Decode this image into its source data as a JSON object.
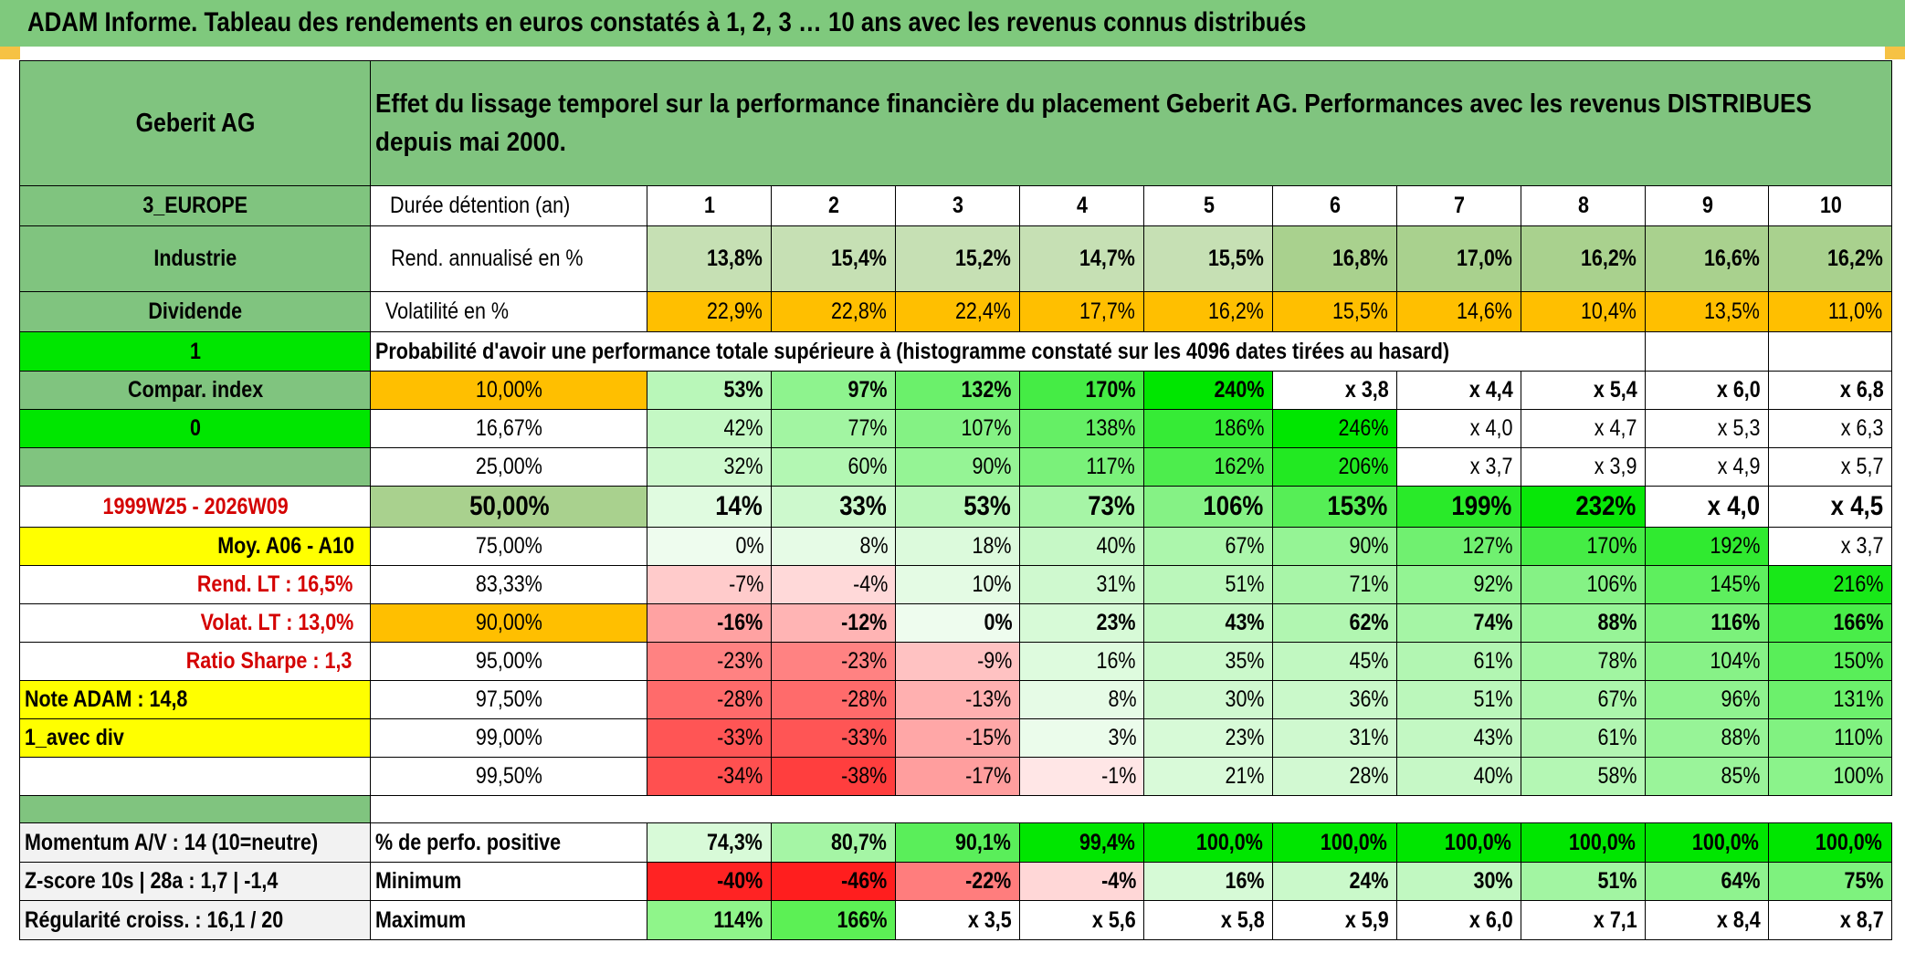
{
  "banner_title": "ADAM Informe. Tableau des rendements en euros constatés à 1, 2, 3 … 10 ans avec les revenus connus distribués",
  "colors": {
    "header_green": "#80c47f",
    "bright_green": "#00e600",
    "orange": "#ffbf00",
    "yellow": "#ffff00",
    "red_text": "#d40000"
  },
  "asset_name": "Geberit AG",
  "header_text": "Effet du lissage temporel sur la performance financière du placement Geberit AG. Performances avec les revenus DISTRIBUES depuis mai 2000.",
  "left_labels": {
    "region": "3_EUROPE",
    "sector": "Industrie",
    "dividend": "Dividende",
    "flag1": "1",
    "compar_index": "Compar. index",
    "flag0": "0",
    "blank": "",
    "period": "1999W25 - 2026W09",
    "moy": "Moy. A06 - A10",
    "rend_lt": "Rend. LT :    16,5%",
    "volat_lt": "Volat. LT :    13,0%",
    "sharpe": "Ratio Sharpe :    1,3",
    "note": "Note ADAM : 14,8",
    "div_mode": "1_avec div",
    "momentum": "Momentum A/V : 14 (10=neutre)",
    "zscore": "Z-score 10s | 28a : 1,7 | -1,4",
    "regularite": "Régularité croiss. : 16,1 / 20"
  },
  "years_label": "Durée détention (an)",
  "years": [
    "1",
    "2",
    "3",
    "4",
    "5",
    "6",
    "7",
    "8",
    "9",
    "10"
  ],
  "rend_label": "Rend. annualisé en %",
  "rend": [
    "13,8%",
    "15,4%",
    "15,2%",
    "14,7%",
    "15,5%",
    "16,8%",
    "17,0%",
    "16,2%",
    "16,6%",
    "16,2%"
  ],
  "vol_label": "Volatilité en %",
  "vol": [
    "22,9%",
    "22,8%",
    "22,4%",
    "17,7%",
    "16,2%",
    "15,5%",
    "14,6%",
    "10,4%",
    "13,5%",
    "11,0%"
  ],
  "prob_header": "Probabilité d'avoir une performance totale supérieure à (histogramme constaté sur les 4096 dates tirées au hasard)",
  "prob_rows": [
    {
      "p": "10,00%",
      "v": [
        "53%",
        "97%",
        "132%",
        "170%",
        "240%",
        "x 3,8",
        "x 4,4",
        "x 5,4",
        "x 6,0",
        "x 6,8"
      ]
    },
    {
      "p": "16,67%",
      "v": [
        "42%",
        "77%",
        "107%",
        "138%",
        "186%",
        "246%",
        "x 4,0",
        "x 4,7",
        "x 5,3",
        "x 6,3"
      ]
    },
    {
      "p": "25,00%",
      "v": [
        "32%",
        "60%",
        "90%",
        "117%",
        "162%",
        "206%",
        "x 3,7",
        "x 3,9",
        "x 4,9",
        "x 5,7"
      ]
    },
    {
      "p": "50,00%",
      "v": [
        "14%",
        "33%",
        "53%",
        "73%",
        "106%",
        "153%",
        "199%",
        "232%",
        "x 4,0",
        "x 4,5"
      ]
    },
    {
      "p": "75,00%",
      "v": [
        "0%",
        "8%",
        "18%",
        "40%",
        "67%",
        "90%",
        "127%",
        "170%",
        "192%",
        "x 3,7"
      ]
    },
    {
      "p": "83,33%",
      "v": [
        "-7%",
        "-4%",
        "10%",
        "31%",
        "51%",
        "71%",
        "92%",
        "106%",
        "145%",
        "216%"
      ]
    },
    {
      "p": "90,00%",
      "v": [
        "-16%",
        "-12%",
        "0%",
        "23%",
        "43%",
        "62%",
        "74%",
        "88%",
        "116%",
        "166%"
      ]
    },
    {
      "p": "95,00%",
      "v": [
        "-23%",
        "-23%",
        "-9%",
        "16%",
        "35%",
        "45%",
        "61%",
        "78%",
        "104%",
        "150%"
      ]
    },
    {
      "p": "97,50%",
      "v": [
        "-28%",
        "-28%",
        "-13%",
        "8%",
        "30%",
        "36%",
        "51%",
        "67%",
        "96%",
        "131%"
      ]
    },
    {
      "p": "99,00%",
      "v": [
        "-33%",
        "-33%",
        "-15%",
        "3%",
        "23%",
        "31%",
        "43%",
        "61%",
        "88%",
        "110%"
      ]
    },
    {
      "p": "99,50%",
      "v": [
        "-34%",
        "-38%",
        "-17%",
        "-1%",
        "21%",
        "28%",
        "40%",
        "58%",
        "85%",
        "100%"
      ]
    }
  ],
  "pos_label": "% de perfo. positive",
  "pos": [
    "74,3%",
    "80,7%",
    "90,1%",
    "99,4%",
    "100,0%",
    "100,0%",
    "100,0%",
    "100,0%",
    "100,0%",
    "100,0%"
  ],
  "min_label": "Minimum",
  "min": [
    "-40%",
    "-46%",
    "-22%",
    "-4%",
    "16%",
    "24%",
    "30%",
    "51%",
    "64%",
    "75%"
  ],
  "max_label": "Maximum",
  "max": [
    "114%",
    "166%",
    "x 3,5",
    "x 5,6",
    "x 5,8",
    "x 5,9",
    "x 6,0",
    "x 7,1",
    "x 8,4",
    "x 8,7"
  ]
}
